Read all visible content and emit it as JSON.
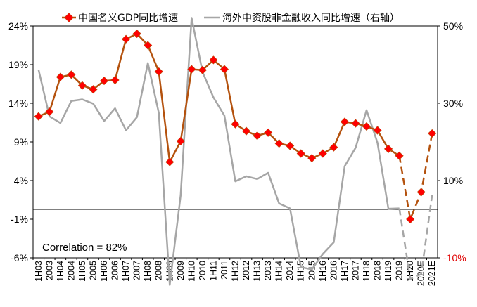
{
  "chart_data": {
    "type": "line",
    "categories": [
      "1H03",
      "2003",
      "1H04",
      "2004",
      "1H05",
      "2005",
      "1H06",
      "2006",
      "1H07",
      "2007",
      "1H08",
      "2008",
      "1H09",
      "2009",
      "1H10",
      "2010",
      "1H11",
      "2011",
      "1H12",
      "2012",
      "1H13",
      "2013",
      "1H14",
      "2014",
      "1H15",
      "2015",
      "1H16",
      "2016",
      "1H17",
      "2017",
      "1H18",
      "2018",
      "1H19",
      "2019",
      "1H20",
      "2020E",
      "2021E"
    ],
    "left_axis": {
      "min": -6,
      "max": 24,
      "ticks": [
        24,
        19,
        14,
        9,
        4,
        -1,
        -6
      ],
      "tick_labels": [
        "24%",
        "19%",
        "14%",
        "9%",
        "4%",
        "-1%",
        "-6%"
      ]
    },
    "right_axis": {
      "min": -10,
      "max": 50,
      "ticks": [
        50,
        30,
        10,
        -10
      ],
      "tick_labels": [
        "50%",
        "30%",
        "10%",
        "-10%"
      ],
      "negative_color": "#e00000"
    },
    "series": [
      {
        "name": "中国名义GDP同比增速",
        "axis": "left",
        "color": "#b4520e",
        "marker_color": "#ff0000",
        "values": [
          12.3,
          12.9,
          17.4,
          17.7,
          16.3,
          15.8,
          16.9,
          17.0,
          22.3,
          23.0,
          21.5,
          18.1,
          6.4,
          9.1,
          18.4,
          18.3,
          19.6,
          18.4,
          11.3,
          10.4,
          9.8,
          10.2,
          8.8,
          8.5,
          7.5,
          6.9,
          7.5,
          8.3,
          11.6,
          11.4,
          11.0,
          10.5,
          8.1,
          7.2,
          -1.0,
          2.5,
          10.1
        ],
        "dashed_from_index": 33
      },
      {
        "name": "海外中资股非金融收入同比增速（右轴）",
        "axis": "right",
        "color": "#a6a6a6",
        "values": [
          38.7,
          26.6,
          24.9,
          30.6,
          31.0,
          29.9,
          25.4,
          28.7,
          23.0,
          26.4,
          40.4,
          27.5,
          -17.0,
          6.2,
          52.1,
          38.1,
          31.5,
          26.8,
          9.8,
          11.1,
          10.4,
          12.0,
          4.1,
          2.8,
          -12.4,
          -13.0,
          -9.0,
          -6.0,
          13.7,
          18.5,
          28.2,
          19.8,
          2.7,
          2.8,
          -15.5,
          -14.2,
          6.3
        ],
        "dashed_from_index": 33
      }
    ],
    "annotation": "Correlation = 82%",
    "legend_position": "top"
  },
  "legend": [
    {
      "label": "中国名义GDP同比增速"
    },
    {
      "label": "海外中资股非金融收入同比增速（右轴）"
    }
  ],
  "annotation_text": "Correlation = 82%"
}
